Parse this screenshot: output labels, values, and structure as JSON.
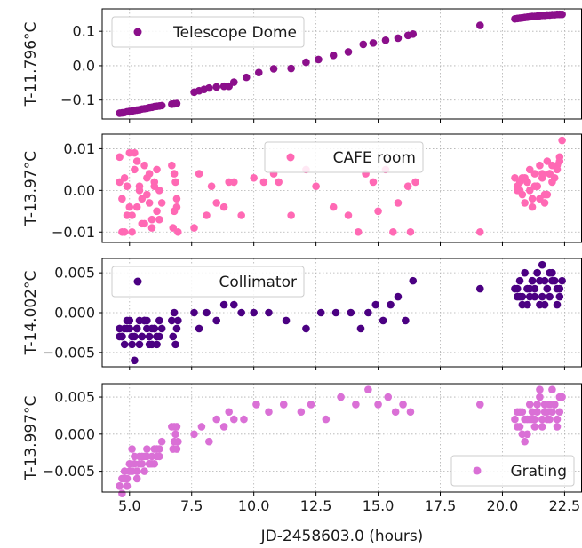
{
  "chart_data": [
    {
      "type": "scatter",
      "ylabel": "T-11.796°C",
      "xlabel": "",
      "xlim": [
        3.9,
        23.2
      ],
      "ylim": [
        -0.155,
        0.165
      ],
      "yticks": [
        -0.1,
        0.0,
        0.1
      ],
      "ytick_labels": [
        "−0.1",
        "0.0",
        "0.1"
      ],
      "xticks": [
        5.0,
        7.5,
        10.0,
        12.5,
        15.0,
        17.5,
        20.0,
        22.5
      ],
      "grid": true,
      "legend": "top-left",
      "color": "#8b0f8b",
      "series": [
        {
          "name": "Telescope Dome",
          "x": [
            4.6,
            4.7,
            4.8,
            4.9,
            5.0,
            5.1,
            5.2,
            5.3,
            5.4,
            5.5,
            5.6,
            5.7,
            5.8,
            5.9,
            6.0,
            6.1,
            6.2,
            6.3,
            6.7,
            6.8,
            6.9,
            7.6,
            7.8,
            8.0,
            8.2,
            8.5,
            8.8,
            9.0,
            9.2,
            9.7,
            10.2,
            10.8,
            11.5,
            12.1,
            12.6,
            13.2,
            13.8,
            14.4,
            14.8,
            15.3,
            15.8,
            16.2,
            16.4,
            19.1,
            20.5,
            20.6,
            20.7,
            20.8,
            20.9,
            21.0,
            21.1,
            21.2,
            21.3,
            21.4,
            21.5,
            21.6,
            21.7,
            21.8,
            21.9,
            22.0,
            22.1,
            22.2,
            22.3,
            22.4
          ],
          "y": [
            -0.138,
            -0.137,
            -0.136,
            -0.134,
            -0.133,
            -0.132,
            -0.13,
            -0.129,
            -0.128,
            -0.126,
            -0.125,
            -0.124,
            -0.122,
            -0.121,
            -0.119,
            -0.118,
            -0.117,
            -0.116,
            -0.112,
            -0.111,
            -0.11,
            -0.077,
            -0.073,
            -0.069,
            -0.065,
            -0.062,
            -0.06,
            -0.06,
            -0.048,
            -0.034,
            -0.02,
            -0.009,
            -0.008,
            0.01,
            0.018,
            0.03,
            0.04,
            0.062,
            0.066,
            0.074,
            0.08,
            0.088,
            0.092,
            0.117,
            0.136,
            0.137,
            0.138,
            0.139,
            0.14,
            0.141,
            0.142,
            0.143,
            0.143,
            0.144,
            0.145,
            0.146,
            0.146,
            0.147,
            0.147,
            0.148,
            0.148,
            0.149,
            0.149,
            0.149
          ]
        }
      ]
    },
    {
      "type": "scatter",
      "ylabel": "T-13.97°C",
      "xlabel": "",
      "xlim": [
        3.9,
        23.2
      ],
      "ylim": [
        -0.0125,
        0.0135
      ],
      "yticks": [
        -0.01,
        0.0,
        0.01
      ],
      "ytick_labels": [
        "−0.01",
        "0.00",
        "0.01"
      ],
      "xticks": [
        5.0,
        7.5,
        10.0,
        12.5,
        15.0,
        17.5,
        20.0,
        22.5
      ],
      "grid": true,
      "legend": "top-center",
      "color": "#ff69b4",
      "series": [
        {
          "name": "CAFE room",
          "x": [
            4.6,
            4.7,
            4.8,
            4.9,
            5.0,
            5.1,
            5.2,
            5.3,
            5.4,
            5.5,
            5.6,
            5.7,
            5.8,
            5.9,
            6.0,
            6.1,
            6.2,
            6.3,
            4.7,
            4.9,
            5.1,
            5.3,
            5.5,
            5.7,
            5.9,
            6.1,
            4.6,
            5.0,
            5.4,
            5.8,
            6.2,
            4.8,
            5.2,
            5.6,
            6.0,
            6.7,
            6.8,
            6.9,
            6.75,
            6.85,
            6.95,
            6.8,
            6.9,
            7.6,
            7.8,
            8.1,
            8.3,
            8.5,
            8.8,
            9.0,
            9.2,
            9.5,
            10.0,
            10.4,
            10.8,
            11.0,
            11.5,
            12.1,
            12.5,
            13.2,
            13.8,
            14.2,
            14.5,
            14.8,
            15.0,
            15.3,
            15.6,
            15.8,
            16.2,
            16.3,
            16.5,
            19.1,
            20.5,
            20.6,
            20.7,
            20.8,
            20.9,
            21.0,
            21.1,
            21.2,
            21.3,
            21.4,
            21.5,
            21.6,
            21.7,
            21.8,
            21.9,
            22.0,
            22.1,
            22.2,
            22.3,
            22.4,
            20.6,
            20.8,
            21.0,
            21.2,
            21.4,
            21.6,
            21.8,
            22.0,
            22.2,
            20.7,
            21.1,
            21.5,
            21.9,
            22.3,
            20.9,
            21.3,
            21.7
          ],
          "y": [
            0.008,
            -0.002,
            0.003,
            -0.006,
            0.009,
            -0.01,
            0.005,
            -0.004,
            0.001,
            -0.008,
            0.006,
            -0.001,
            0.004,
            -0.007,
            0.002,
            -0.005,
            0.0,
            -0.003,
            -0.01,
            0.001,
            -0.006,
            0.007,
            -0.002,
            0.003,
            -0.009,
            0.005,
            0.002,
            -0.004,
            0.0,
            -0.003,
            -0.007,
            -0.01,
            0.009,
            -0.008,
            0.001,
            0.006,
            0.004,
            -0.002,
            -0.009,
            0.002,
            -0.01,
            -0.005,
            -0.004,
            -0.009,
            0.004,
            -0.006,
            0.001,
            -0.003,
            -0.004,
            0.002,
            0.002,
            -0.006,
            0.003,
            0.002,
            0.004,
            0.002,
            -0.006,
            0.005,
            0.001,
            -0.004,
            -0.006,
            -0.01,
            0.004,
            0.002,
            -0.005,
            0.005,
            -0.01,
            -0.003,
            0.001,
            -0.01,
            0.002,
            -0.01,
            0.003,
            0.001,
            0.0,
            -0.001,
            -0.003,
            0.002,
            0.005,
            -0.002,
            0.004,
            0.001,
            0.006,
            0.003,
            -0.001,
            0.007,
            0.004,
            0.002,
            0.003,
            0.006,
            0.008,
            0.012,
            0.0,
            0.003,
            0.002,
            -0.004,
            0.001,
            0.004,
            -0.001,
            0.006,
            0.005,
            0.002,
            0.0,
            -0.002,
            0.004,
            0.007,
            0.003,
            0.001,
            -0.003
          ]
        }
      ]
    },
    {
      "type": "scatter",
      "ylabel": "T-14.002°C",
      "xlabel": "",
      "xlim": [
        3.9,
        23.2
      ],
      "ylim": [
        -0.0068,
        0.0068
      ],
      "yticks": [
        -0.005,
        0.0,
        0.005
      ],
      "ytick_labels": [
        "−0.005",
        "0.000",
        "0.005"
      ],
      "xticks": [
        5.0,
        7.5,
        10.0,
        12.5,
        15.0,
        17.5,
        20.0,
        22.5
      ],
      "grid": true,
      "legend": "top-left",
      "color": "#4b0082",
      "series": [
        {
          "name": "Collimator",
          "x": [
            4.6,
            4.7,
            4.8,
            4.9,
            5.0,
            5.1,
            5.2,
            5.3,
            5.4,
            5.5,
            5.6,
            5.7,
            5.8,
            5.9,
            6.0,
            6.1,
            6.2,
            6.3,
            4.7,
            4.9,
            5.1,
            5.3,
            5.5,
            5.7,
            5.9,
            6.1,
            4.6,
            5.0,
            5.4,
            5.8,
            6.2,
            4.8,
            5.2,
            5.6,
            6.0,
            6.7,
            6.8,
            6.9,
            6.75,
            6.85,
            6.95,
            7.6,
            7.8,
            8.1,
            8.5,
            8.8,
            9.2,
            9.5,
            10.0,
            10.6,
            11.3,
            12.1,
            12.7,
            13.3,
            13.9,
            14.3,
            14.6,
            14.9,
            15.2,
            15.5,
            15.8,
            16.1,
            16.4,
            19.1,
            20.5,
            20.6,
            20.7,
            20.8,
            20.9,
            21.0,
            21.1,
            21.2,
            21.3,
            21.4,
            21.5,
            21.6,
            21.7,
            21.8,
            21.9,
            22.0,
            22.1,
            22.2,
            22.3,
            22.4,
            20.6,
            20.8,
            21.0,
            21.2,
            21.4,
            21.6,
            21.8,
            22.0,
            22.2,
            20.7,
            21.1,
            21.5,
            21.9,
            22.3,
            21.3,
            21.7
          ],
          "y": [
            -0.002,
            -0.003,
            -0.004,
            -0.002,
            -0.001,
            -0.003,
            -0.006,
            -0.002,
            -0.004,
            -0.003,
            -0.001,
            -0.002,
            -0.003,
            -0.004,
            -0.002,
            -0.003,
            -0.001,
            -0.002,
            -0.003,
            -0.001,
            -0.004,
            -0.002,
            -0.003,
            -0.001,
            -0.002,
            -0.004,
            -0.003,
            -0.002,
            -0.001,
            -0.004,
            -0.003,
            -0.002,
            -0.003,
            -0.001,
            -0.002,
            -0.001,
            0.0,
            -0.002,
            -0.003,
            -0.004,
            -0.001,
            0.0,
            -0.002,
            0.0,
            -0.001,
            0.001,
            0.001,
            0.0,
            0.0,
            0.0,
            -0.001,
            -0.002,
            0.0,
            0.0,
            0.0,
            -0.002,
            0.0,
            0.001,
            -0.001,
            0.001,
            0.002,
            -0.001,
            0.004,
            0.003,
            0.003,
            0.002,
            0.004,
            0.001,
            0.005,
            0.003,
            0.002,
            0.004,
            0.003,
            0.005,
            0.001,
            0.006,
            0.004,
            0.003,
            0.002,
            0.005,
            0.004,
            0.003,
            0.002,
            0.004,
            0.003,
            0.002,
            0.001,
            0.004,
            0.005,
            0.002,
            0.003,
            0.004,
            0.001,
            0.002,
            0.003,
            0.004,
            0.005,
            0.003,
            0.002,
            0.001
          ]
        }
      ]
    },
    {
      "type": "scatter",
      "ylabel": "T-13.997°C",
      "xlabel": "JD-2458603.0 (hours)",
      "xlim": [
        3.9,
        23.2
      ],
      "ylim": [
        -0.0078,
        0.0068
      ],
      "yticks": [
        -0.005,
        0.0,
        0.005
      ],
      "ytick_labels": [
        "−0.005",
        "0.000",
        "0.005"
      ],
      "xticks": [
        5.0,
        7.5,
        10.0,
        12.5,
        15.0,
        17.5,
        20.0,
        22.5
      ],
      "xtick_labels": [
        "5.0",
        "7.5",
        "10.0",
        "12.5",
        "15.0",
        "17.5",
        "20.0",
        "22.5"
      ],
      "grid": true,
      "legend": "bottom-right",
      "color": "#da70d6",
      "series": [
        {
          "name": "Grating",
          "x": [
            4.6,
            4.7,
            4.8,
            4.9,
            5.0,
            5.1,
            5.2,
            5.3,
            5.4,
            5.5,
            5.6,
            5.7,
            5.8,
            5.9,
            6.0,
            6.1,
            6.2,
            6.3,
            4.7,
            4.9,
            5.1,
            5.3,
            5.5,
            5.7,
            5.9,
            6.1,
            4.6,
            5.0,
            5.4,
            5.8,
            6.2,
            4.8,
            5.2,
            5.6,
            6.0,
            6.7,
            6.8,
            6.9,
            6.75,
            6.85,
            6.95,
            6.8,
            6.9,
            7.6,
            7.9,
            8.2,
            8.5,
            8.8,
            9.0,
            9.2,
            9.6,
            10.1,
            10.6,
            11.2,
            11.9,
            12.3,
            12.9,
            13.5,
            14.1,
            14.6,
            15.0,
            15.4,
            15.7,
            16.0,
            16.3,
            19.1,
            20.5,
            20.6,
            20.7,
            20.8,
            20.9,
            21.0,
            21.1,
            21.2,
            21.3,
            21.4,
            21.5,
            21.6,
            21.7,
            21.8,
            21.9,
            22.0,
            22.1,
            22.2,
            22.3,
            22.4,
            20.6,
            20.8,
            21.0,
            21.2,
            21.4,
            21.6,
            21.8,
            22.0,
            22.2,
            20.7,
            21.1,
            21.5,
            21.9,
            22.3,
            20.9,
            21.3,
            21.7,
            22.1
          ],
          "y": [
            -0.007,
            -0.006,
            -0.005,
            -0.007,
            -0.004,
            -0.005,
            -0.003,
            -0.006,
            -0.004,
            -0.003,
            -0.005,
            -0.002,
            -0.004,
            -0.003,
            -0.004,
            -0.003,
            -0.002,
            -0.001,
            -0.008,
            -0.006,
            -0.002,
            -0.005,
            -0.004,
            -0.003,
            -0.004,
            -0.002,
            -0.007,
            -0.005,
            -0.003,
            -0.004,
            -0.003,
            -0.006,
            -0.004,
            -0.003,
            -0.002,
            0.001,
            -0.001,
            0.001,
            -0.002,
            0.0,
            -0.001,
            0.001,
            -0.002,
            0.0,
            0.001,
            -0.001,
            0.002,
            0.001,
            0.003,
            0.002,
            0.002,
            0.004,
            0.003,
            0.004,
            0.003,
            0.004,
            0.002,
            0.005,
            0.004,
            0.006,
            0.004,
            0.005,
            0.003,
            0.004,
            0.003,
            0.004,
            0.002,
            0.003,
            0.001,
            0.003,
            0.002,
            0.0,
            0.004,
            0.002,
            0.001,
            0.003,
            0.005,
            0.002,
            0.004,
            0.003,
            0.002,
            0.006,
            0.004,
            0.002,
            0.003,
            0.005,
            0.001,
            0.0,
            0.002,
            0.003,
            0.004,
            0.001,
            0.002,
            0.003,
            0.001,
            0.003,
            0.002,
            0.006,
            0.004,
            0.005,
            -0.001,
            0.002,
            0.003,
            0.004
          ]
        }
      ]
    }
  ]
}
